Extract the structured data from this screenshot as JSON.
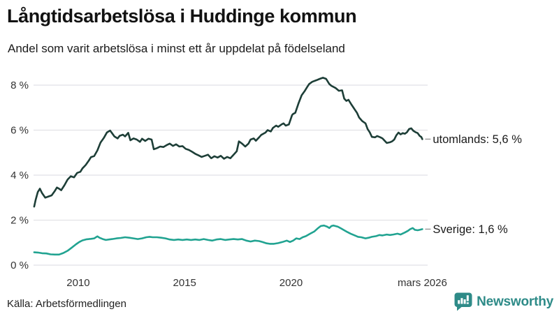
{
  "header": {
    "title": "Långtidsarbetslösa i Huddinge kommun",
    "subtitle": "Andel som varit arbetslösa i minst ett år uppdelat på födelseland"
  },
  "chart_data": {
    "type": "line",
    "title": "Långtidsarbetslösa i Huddinge kommun",
    "subtitle": "Andel som varit arbetslösa i minst ett år uppdelat på födelseland",
    "unit": "%",
    "grid": true,
    "legend_position": "line-end-labels",
    "x_axis": {
      "range": [
        2007.9,
        2026.42
      ],
      "ticks": [
        {
          "label": "2010",
          "x": 2010
        },
        {
          "label": "2015",
          "x": 2015
        },
        {
          "label": "2020",
          "x": 2020
        },
        {
          "label": "mars 2026",
          "x": 2026.17
        }
      ]
    },
    "y_axis": {
      "range": [
        0,
        8.6
      ],
      "gridline_color": "#e1e1e6",
      "ticks": [
        {
          "label": "0 %",
          "value": 0
        },
        {
          "label": "2 %",
          "value": 2
        },
        {
          "label": "4 %",
          "value": 4
        },
        {
          "label": "6 %",
          "value": 6
        },
        {
          "label": "8 %",
          "value": 8
        }
      ]
    },
    "series": [
      {
        "name": "utomlands",
        "end_label": "utomlands: 5,6 %",
        "latest_value": "5,6 %",
        "color": "#1d3e37",
        "points": [
          [
            2007.93,
            2.6
          ],
          [
            2008.0,
            2.9
          ],
          [
            2008.1,
            3.25
          ],
          [
            2008.2,
            3.4
          ],
          [
            2008.3,
            3.2
          ],
          [
            2008.45,
            3.0
          ],
          [
            2008.6,
            3.05
          ],
          [
            2008.75,
            3.1
          ],
          [
            2008.9,
            3.3
          ],
          [
            2009.0,
            3.45
          ],
          [
            2009.1,
            3.4
          ],
          [
            2009.2,
            3.33
          ],
          [
            2009.35,
            3.55
          ],
          [
            2009.5,
            3.8
          ],
          [
            2009.65,
            3.95
          ],
          [
            2009.8,
            3.9
          ],
          [
            2009.95,
            4.1
          ],
          [
            2010.1,
            4.15
          ],
          [
            2010.2,
            4.3
          ],
          [
            2010.35,
            4.45
          ],
          [
            2010.5,
            4.65
          ],
          [
            2010.6,
            4.8
          ],
          [
            2010.75,
            4.85
          ],
          [
            2010.9,
            5.1
          ],
          [
            2011.05,
            5.45
          ],
          [
            2011.2,
            5.65
          ],
          [
            2011.35,
            5.9
          ],
          [
            2011.5,
            5.98
          ],
          [
            2011.6,
            5.85
          ],
          [
            2011.7,
            5.72
          ],
          [
            2011.85,
            5.63
          ],
          [
            2011.95,
            5.75
          ],
          [
            2012.1,
            5.8
          ],
          [
            2012.2,
            5.72
          ],
          [
            2012.35,
            5.88
          ],
          [
            2012.45,
            5.55
          ],
          [
            2012.6,
            5.63
          ],
          [
            2012.75,
            5.58
          ],
          [
            2012.9,
            5.48
          ],
          [
            2013.0,
            5.62
          ],
          [
            2013.15,
            5.52
          ],
          [
            2013.3,
            5.62
          ],
          [
            2013.45,
            5.58
          ],
          [
            2013.55,
            5.15
          ],
          [
            2013.7,
            5.2
          ],
          [
            2013.85,
            5.27
          ],
          [
            2014.0,
            5.25
          ],
          [
            2014.15,
            5.33
          ],
          [
            2014.3,
            5.4
          ],
          [
            2014.45,
            5.3
          ],
          [
            2014.6,
            5.37
          ],
          [
            2014.75,
            5.27
          ],
          [
            2014.9,
            5.29
          ],
          [
            2015.05,
            5.17
          ],
          [
            2015.2,
            5.12
          ],
          [
            2015.35,
            5.04
          ],
          [
            2015.5,
            4.95
          ],
          [
            2015.65,
            4.88
          ],
          [
            2015.8,
            4.81
          ],
          [
            2015.95,
            4.86
          ],
          [
            2016.1,
            4.91
          ],
          [
            2016.25,
            4.75
          ],
          [
            2016.4,
            4.84
          ],
          [
            2016.55,
            4.78
          ],
          [
            2016.7,
            4.86
          ],
          [
            2016.85,
            4.73
          ],
          [
            2017.0,
            4.81
          ],
          [
            2017.15,
            4.75
          ],
          [
            2017.3,
            4.91
          ],
          [
            2017.45,
            5.06
          ],
          [
            2017.55,
            5.5
          ],
          [
            2017.7,
            5.4
          ],
          [
            2017.85,
            5.27
          ],
          [
            2018.0,
            5.4
          ],
          [
            2018.1,
            5.58
          ],
          [
            2018.25,
            5.63
          ],
          [
            2018.35,
            5.53
          ],
          [
            2018.5,
            5.68
          ],
          [
            2018.6,
            5.79
          ],
          [
            2018.8,
            5.89
          ],
          [
            2018.9,
            6.0
          ],
          [
            2019.05,
            5.94
          ],
          [
            2019.15,
            6.1
          ],
          [
            2019.3,
            6.2
          ],
          [
            2019.4,
            6.15
          ],
          [
            2019.55,
            6.25
          ],
          [
            2019.65,
            6.3
          ],
          [
            2019.75,
            6.2
          ],
          [
            2019.9,
            6.25
          ],
          [
            2020.05,
            6.67
          ],
          [
            2020.1,
            6.72
          ],
          [
            2020.2,
            6.77
          ],
          [
            2020.35,
            7.18
          ],
          [
            2020.5,
            7.55
          ],
          [
            2020.65,
            7.75
          ],
          [
            2020.75,
            7.9
          ],
          [
            2020.85,
            8.05
          ],
          [
            2021.0,
            8.15
          ],
          [
            2021.2,
            8.22
          ],
          [
            2021.35,
            8.28
          ],
          [
            2021.5,
            8.33
          ],
          [
            2021.65,
            8.28
          ],
          [
            2021.8,
            8.05
          ],
          [
            2021.9,
            7.97
          ],
          [
            2022.1,
            7.87
          ],
          [
            2022.25,
            7.75
          ],
          [
            2022.4,
            7.77
          ],
          [
            2022.5,
            7.4
          ],
          [
            2022.6,
            7.3
          ],
          [
            2022.7,
            7.35
          ],
          [
            2022.85,
            7.12
          ],
          [
            2022.95,
            6.98
          ],
          [
            2023.1,
            6.77
          ],
          [
            2023.2,
            6.56
          ],
          [
            2023.35,
            6.4
          ],
          [
            2023.5,
            6.3
          ],
          [
            2023.6,
            6.05
          ],
          [
            2023.7,
            5.9
          ],
          [
            2023.8,
            5.7
          ],
          [
            2023.95,
            5.68
          ],
          [
            2024.05,
            5.74
          ],
          [
            2024.2,
            5.68
          ],
          [
            2024.3,
            5.63
          ],
          [
            2024.4,
            5.53
          ],
          [
            2024.5,
            5.43
          ],
          [
            2024.65,
            5.46
          ],
          [
            2024.75,
            5.5
          ],
          [
            2024.85,
            5.58
          ],
          [
            2024.95,
            5.77
          ],
          [
            2025.05,
            5.89
          ],
          [
            2025.15,
            5.81
          ],
          [
            2025.25,
            5.87
          ],
          [
            2025.35,
            5.84
          ],
          [
            2025.45,
            5.91
          ],
          [
            2025.55,
            6.05
          ],
          [
            2025.65,
            6.08
          ],
          [
            2025.75,
            5.97
          ],
          [
            2025.85,
            5.91
          ],
          [
            2025.95,
            5.87
          ],
          [
            2026.05,
            5.74
          ],
          [
            2026.12,
            5.7
          ],
          [
            2026.17,
            5.6
          ]
        ]
      },
      {
        "name": "Sverige",
        "end_label": "Sverige: 1,6 %",
        "latest_value": "1,6 %",
        "color": "#21a391",
        "points": [
          [
            2007.93,
            0.57
          ],
          [
            2008.1,
            0.56
          ],
          [
            2008.3,
            0.53
          ],
          [
            2008.5,
            0.52
          ],
          [
            2008.7,
            0.48
          ],
          [
            2008.9,
            0.47
          ],
          [
            2009.1,
            0.47
          ],
          [
            2009.3,
            0.54
          ],
          [
            2009.5,
            0.64
          ],
          [
            2009.7,
            0.78
          ],
          [
            2009.9,
            0.93
          ],
          [
            2010.05,
            1.03
          ],
          [
            2010.2,
            1.1
          ],
          [
            2010.4,
            1.15
          ],
          [
            2010.6,
            1.17
          ],
          [
            2010.75,
            1.19
          ],
          [
            2010.9,
            1.28
          ],
          [
            2011.0,
            1.22
          ],
          [
            2011.15,
            1.16
          ],
          [
            2011.3,
            1.12
          ],
          [
            2011.45,
            1.14
          ],
          [
            2011.6,
            1.16
          ],
          [
            2011.8,
            1.19
          ],
          [
            2012.0,
            1.21
          ],
          [
            2012.2,
            1.24
          ],
          [
            2012.4,
            1.22
          ],
          [
            2012.6,
            1.19
          ],
          [
            2012.8,
            1.16
          ],
          [
            2013.0,
            1.19
          ],
          [
            2013.2,
            1.24
          ],
          [
            2013.35,
            1.26
          ],
          [
            2013.5,
            1.24
          ],
          [
            2013.7,
            1.24
          ],
          [
            2013.9,
            1.22
          ],
          [
            2014.1,
            1.19
          ],
          [
            2014.3,
            1.14
          ],
          [
            2014.5,
            1.12
          ],
          [
            2014.7,
            1.14
          ],
          [
            2014.9,
            1.12
          ],
          [
            2015.1,
            1.14
          ],
          [
            2015.3,
            1.12
          ],
          [
            2015.5,
            1.14
          ],
          [
            2015.7,
            1.12
          ],
          [
            2015.9,
            1.16
          ],
          [
            2016.1,
            1.12
          ],
          [
            2016.3,
            1.09
          ],
          [
            2016.5,
            1.14
          ],
          [
            2016.7,
            1.16
          ],
          [
            2016.9,
            1.12
          ],
          [
            2017.1,
            1.14
          ],
          [
            2017.3,
            1.16
          ],
          [
            2017.5,
            1.14
          ],
          [
            2017.7,
            1.16
          ],
          [
            2017.9,
            1.09
          ],
          [
            2018.1,
            1.05
          ],
          [
            2018.3,
            1.09
          ],
          [
            2018.5,
            1.07
          ],
          [
            2018.65,
            1.03
          ],
          [
            2018.85,
            0.97
          ],
          [
            2019.0,
            0.95
          ],
          [
            2019.2,
            0.95
          ],
          [
            2019.4,
            0.98
          ],
          [
            2019.6,
            1.03
          ],
          [
            2019.8,
            1.09
          ],
          [
            2019.95,
            1.03
          ],
          [
            2020.1,
            1.09
          ],
          [
            2020.25,
            1.19
          ],
          [
            2020.4,
            1.16
          ],
          [
            2020.55,
            1.24
          ],
          [
            2020.7,
            1.29
          ],
          [
            2020.9,
            1.4
          ],
          [
            2021.1,
            1.5
          ],
          [
            2021.25,
            1.63
          ],
          [
            2021.4,
            1.74
          ],
          [
            2021.55,
            1.76
          ],
          [
            2021.7,
            1.71
          ],
          [
            2021.8,
            1.65
          ],
          [
            2021.9,
            1.74
          ],
          [
            2022.0,
            1.76
          ],
          [
            2022.2,
            1.71
          ],
          [
            2022.35,
            1.63
          ],
          [
            2022.5,
            1.55
          ],
          [
            2022.65,
            1.47
          ],
          [
            2022.8,
            1.4
          ],
          [
            2023.0,
            1.32
          ],
          [
            2023.15,
            1.26
          ],
          [
            2023.3,
            1.24
          ],
          [
            2023.5,
            1.19
          ],
          [
            2023.65,
            1.22
          ],
          [
            2023.8,
            1.26
          ],
          [
            2024.0,
            1.29
          ],
          [
            2024.15,
            1.34
          ],
          [
            2024.3,
            1.32
          ],
          [
            2024.5,
            1.36
          ],
          [
            2024.65,
            1.34
          ],
          [
            2024.8,
            1.36
          ],
          [
            2025.0,
            1.4
          ],
          [
            2025.15,
            1.36
          ],
          [
            2025.35,
            1.45
          ],
          [
            2025.5,
            1.53
          ],
          [
            2025.6,
            1.6
          ],
          [
            2025.72,
            1.65
          ],
          [
            2025.82,
            1.57
          ],
          [
            2025.95,
            1.55
          ],
          [
            2026.05,
            1.57
          ],
          [
            2026.17,
            1.6
          ]
        ]
      }
    ]
  },
  "footer": {
    "source": "Källa: Arbetsförmedlingen",
    "brand": {
      "name": "Newsworthy",
      "color": "#2e8b88",
      "icon": "newsworthy-bubble-chart-icon"
    }
  }
}
